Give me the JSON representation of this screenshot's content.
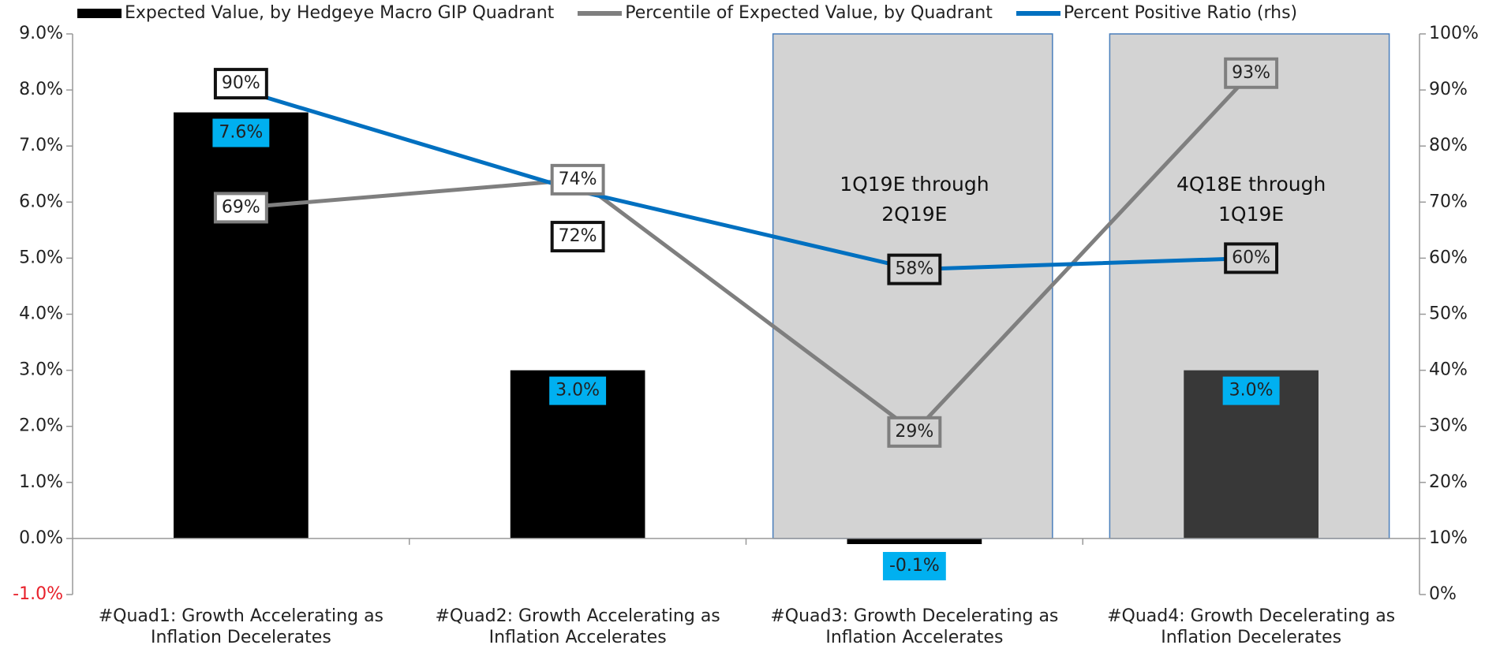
{
  "chart_data": {
    "type": "bar",
    "categories": [
      "#Quad1: Growth Accelerating as\nInflation Decelerates",
      "#Quad2: Growth Accelerating as\nInflation Accelerates",
      "#Quad3: Growth Decelerating as\nInflation Accelerates",
      "#Quad4: Growth Decelerating as\nInflation Decelerates"
    ],
    "series": [
      {
        "name": "Expected Value, by Hedgeye Macro GIP Quadrant",
        "type": "bar",
        "color": "#000000",
        "colors": [
          "#000000",
          "#000000",
          "#000000",
          "#383838"
        ],
        "values": [
          7.6,
          3.0,
          -0.1,
          3.0
        ],
        "value_labels": [
          "7.6%",
          "3.0%",
          "-0.1%",
          "3.0%"
        ]
      },
      {
        "name": "Percentile of Expected Value, by Quadrant",
        "type": "line",
        "color": "#7f7f7f",
        "axis": "y2",
        "values": [
          69,
          74,
          29,
          93
        ],
        "value_labels": [
          "69%",
          "74%",
          "29%",
          "93%"
        ]
      },
      {
        "name": "Percent Positive Ratio (rhs)",
        "type": "line",
        "color": "#0070c0",
        "axis": "y2",
        "values": [
          90,
          72,
          58,
          60
        ],
        "value_labels": [
          "90%",
          "72%",
          "58%",
          "60%"
        ]
      }
    ],
    "annotations": [
      null,
      null,
      "1Q19E through\n2Q19E",
      "4Q18E through\n1Q19E"
    ],
    "ylim": [
      -1,
      9
    ],
    "yticks": [
      {
        "value": -1,
        "label": "-1.0%"
      },
      {
        "value": 0,
        "label": "0.0%"
      },
      {
        "value": 1,
        "label": "1.0%"
      },
      {
        "value": 2,
        "label": "2.0%"
      },
      {
        "value": 3,
        "label": "3.0%"
      },
      {
        "value": 4,
        "label": "4.0%"
      },
      {
        "value": 5,
        "label": "5.0%"
      },
      {
        "value": 6,
        "label": "6.0%"
      },
      {
        "value": 7,
        "label": "7.0%"
      },
      {
        "value": 8,
        "label": "8.0%"
      },
      {
        "value": 9,
        "label": "9.0%"
      }
    ],
    "y2lim": [
      0,
      100
    ],
    "y2ticks": [
      {
        "value": 0,
        "label": "0%"
      },
      {
        "value": 10,
        "label": "10%"
      },
      {
        "value": 20,
        "label": "20%"
      },
      {
        "value": 30,
        "label": "30%"
      },
      {
        "value": 40,
        "label": "40%"
      },
      {
        "value": 50,
        "label": "50%"
      },
      {
        "value": 60,
        "label": "60%"
      },
      {
        "value": 70,
        "label": "70%"
      },
      {
        "value": 80,
        "label": "80%"
      },
      {
        "value": 90,
        "label": "90%"
      },
      {
        "value": 100,
        "label": "100%"
      }
    ],
    "negative_tick_color": "#e8202a",
    "grid": false,
    "legend": "top"
  }
}
